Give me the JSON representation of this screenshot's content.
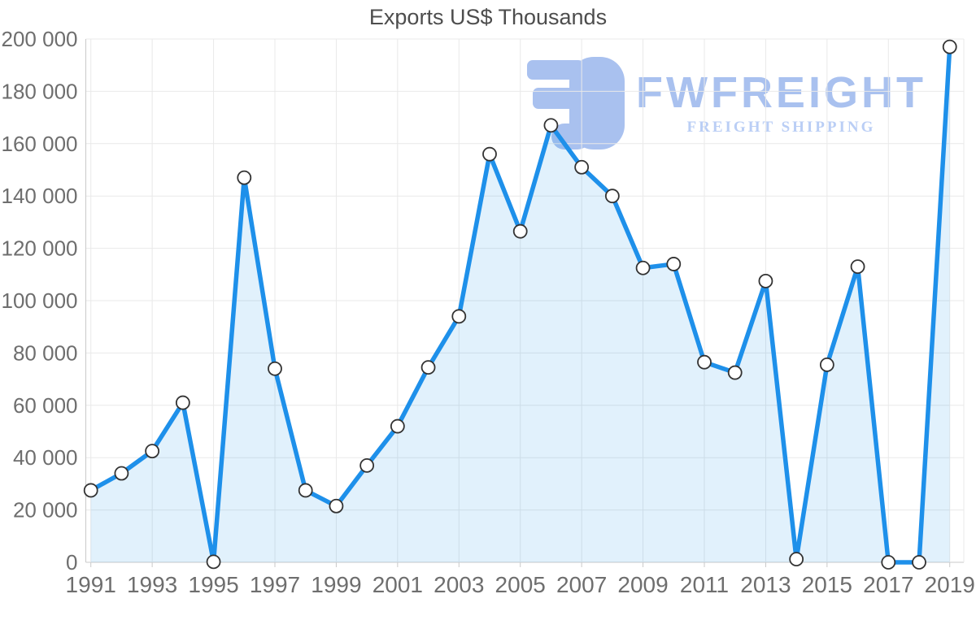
{
  "brand": {
    "name": "FWFREIGHT",
    "tagline": "FREIGHT SHIPPING",
    "name_color": "#a9c1ef",
    "tagline_color": "#bacef5",
    "icon": "fwfreight-logo-icon"
  },
  "chart_data": {
    "type": "area",
    "title": "Exports US$ Thousands",
    "x": [
      1991,
      1992,
      1993,
      1994,
      1995,
      1996,
      1997,
      1998,
      1999,
      2000,
      2001,
      2002,
      2003,
      2004,
      2005,
      2006,
      2007,
      2008,
      2009,
      2010,
      2011,
      2012,
      2013,
      2014,
      2015,
      2016,
      2017,
      2018,
      2019
    ],
    "values": [
      27500,
      34000,
      42500,
      61000,
      200,
      147000,
      74000,
      27500,
      21500,
      37000,
      52000,
      74500,
      94000,
      156000,
      126500,
      167000,
      151000,
      140000,
      112500,
      114000,
      76500,
      72500,
      107500,
      1200,
      75500,
      113000,
      0,
      0,
      197000
    ],
    "series_name": "Exports US$ Thousands",
    "xlabel": "",
    "ylabel": "",
    "ylim": [
      0,
      200000
    ],
    "grid": true,
    "legend": false,
    "x_tick_labels": [
      "1991",
      "1993",
      "1995",
      "1997",
      "1999",
      "2001",
      "2003",
      "2005",
      "2007",
      "2009",
      "2011",
      "2013",
      "2015",
      "2017",
      "2019"
    ],
    "y_ticks": [
      {
        "value": 200000,
        "label": "200 000"
      },
      {
        "value": 180000,
        "label": "180 000"
      },
      {
        "value": 160000,
        "label": "160 000"
      },
      {
        "value": 140000,
        "label": "140 000"
      },
      {
        "value": 120000,
        "label": "120 000"
      },
      {
        "value": 100000,
        "label": "100 000"
      },
      {
        "value": 80000,
        "label": "80 000"
      },
      {
        "value": 60000,
        "label": "60 000"
      },
      {
        "value": 40000,
        "label": "40 000"
      },
      {
        "value": 20000,
        "label": "20 000"
      },
      {
        "value": 0,
        "label": "0"
      }
    ],
    "colors": {
      "line": "#1e90ea",
      "area": "rgba(27,144,234,0.13)",
      "marker_fill": "#ffffff",
      "marker_stroke": "#333333",
      "grid": "#e9e9e9",
      "axis": "#c9c9c9",
      "label": "#6e6e6e",
      "title": "#4d4d4d"
    }
  }
}
